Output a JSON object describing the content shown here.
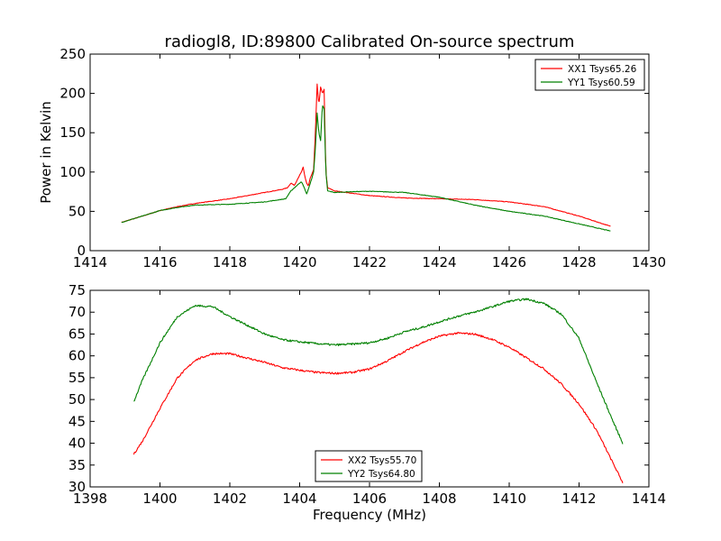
{
  "chart_data": [
    {
      "type": "line",
      "title": "radiogl8, ID:89800 Calibrated On-source spectrum",
      "xlabel": "",
      "ylabel": "Power in Kelvin",
      "xlim": [
        1414,
        1430
      ],
      "ylim": [
        0,
        250
      ],
      "xticks": [
        1414,
        1416,
        1418,
        1420,
        1422,
        1424,
        1426,
        1428,
        1430
      ],
      "yticks": [
        0,
        50,
        100,
        150,
        200,
        250
      ],
      "grid": false,
      "legend": "top-right",
      "series": [
        {
          "name": "XX1 Tsys65.26",
          "color": "#ff0000",
          "points": [
            [
              1414.9,
              36
            ],
            [
              1415.5,
              44
            ],
            [
              1416.0,
              51
            ],
            [
              1416.5,
              56
            ],
            [
              1417.0,
              60
            ],
            [
              1417.5,
              63
            ],
            [
              1418.0,
              66
            ],
            [
              1418.5,
              70
            ],
            [
              1419.0,
              74
            ],
            [
              1419.5,
              78
            ],
            [
              1419.65,
              80
            ],
            [
              1419.75,
              86
            ],
            [
              1419.85,
              83
            ],
            [
              1419.95,
              92
            ],
            [
              1420.05,
              100
            ],
            [
              1420.1,
              106
            ],
            [
              1420.15,
              94
            ],
            [
              1420.2,
              86
            ],
            [
              1420.25,
              82
            ],
            [
              1420.3,
              92
            ],
            [
              1420.35,
              97
            ],
            [
              1420.4,
              103
            ],
            [
              1420.45,
              150
            ],
            [
              1420.5,
              212
            ],
            [
              1420.55,
              185
            ],
            [
              1420.6,
              208
            ],
            [
              1420.65,
              200
            ],
            [
              1420.7,
              205
            ],
            [
              1420.75,
              100
            ],
            [
              1420.8,
              80
            ],
            [
              1421.0,
              76
            ],
            [
              1421.5,
              73
            ],
            [
              1422.0,
              70
            ],
            [
              1423.0,
              67
            ],
            [
              1424.0,
              66
            ],
            [
              1425.0,
              65
            ],
            [
              1426.0,
              62
            ],
            [
              1427.0,
              56
            ],
            [
              1428.0,
              44
            ],
            [
              1428.9,
              31
            ]
          ]
        },
        {
          "name": "YY1 Tsys60.59",
          "color": "#008000",
          "points": [
            [
              1414.9,
              36
            ],
            [
              1415.5,
              44
            ],
            [
              1416.0,
              51
            ],
            [
              1416.5,
              55
            ],
            [
              1417.0,
              58
            ],
            [
              1418.0,
              59
            ],
            [
              1419.0,
              62
            ],
            [
              1419.6,
              66
            ],
            [
              1419.75,
              76
            ],
            [
              1419.9,
              82
            ],
            [
              1420.05,
              88
            ],
            [
              1420.15,
              78
            ],
            [
              1420.2,
              72
            ],
            [
              1420.3,
              85
            ],
            [
              1420.4,
              100
            ],
            [
              1420.45,
              130
            ],
            [
              1420.5,
              175
            ],
            [
              1420.55,
              150
            ],
            [
              1420.6,
              140
            ],
            [
              1420.65,
              185
            ],
            [
              1420.7,
              180
            ],
            [
              1420.75,
              100
            ],
            [
              1420.8,
              76
            ],
            [
              1421.0,
              74
            ],
            [
              1421.5,
              75
            ],
            [
              1422.0,
              75.5
            ],
            [
              1423.0,
              74
            ],
            [
              1424.0,
              68
            ],
            [
              1425.0,
              58
            ],
            [
              1426.0,
              50
            ],
            [
              1427.0,
              44
            ],
            [
              1428.0,
              34
            ],
            [
              1428.9,
              25
            ]
          ]
        }
      ]
    },
    {
      "type": "line",
      "title": "",
      "xlabel": "Frequency (MHz)",
      "ylabel": "",
      "xlim": [
        1398,
        1414
      ],
      "ylim": [
        30,
        75
      ],
      "xticks": [
        1398,
        1400,
        1402,
        1404,
        1406,
        1408,
        1410,
        1412,
        1414
      ],
      "yticks": [
        30,
        35,
        40,
        45,
        50,
        55,
        60,
        65,
        70,
        75
      ],
      "grid": false,
      "legend": "bottom-center",
      "series": [
        {
          "name": "XX2 Tsys55.70",
          "color": "#ff0000",
          "points": [
            [
              1399.25,
              37.5
            ],
            [
              1399.5,
              40.5
            ],
            [
              1400.0,
              48
            ],
            [
              1400.5,
              55
            ],
            [
              1401.0,
              59
            ],
            [
              1401.5,
              60.5
            ],
            [
              1402.0,
              60.5
            ],
            [
              1402.5,
              59.5
            ],
            [
              1403.0,
              58.5
            ],
            [
              1403.5,
              57.3
            ],
            [
              1404.0,
              56.7
            ],
            [
              1404.5,
              56.2
            ],
            [
              1405.0,
              56
            ],
            [
              1405.5,
              56.2
            ],
            [
              1406.0,
              57
            ],
            [
              1406.5,
              58.8
            ],
            [
              1407.0,
              61
            ],
            [
              1407.5,
              63
            ],
            [
              1408.0,
              64.5
            ],
            [
              1408.5,
              65.2
            ],
            [
              1409.0,
              65
            ],
            [
              1409.5,
              63.8
            ],
            [
              1410.0,
              62
            ],
            [
              1410.5,
              59.5
            ],
            [
              1411.0,
              57
            ],
            [
              1411.5,
              53.5
            ],
            [
              1412.0,
              49
            ],
            [
              1412.5,
              43
            ],
            [
              1413.0,
              35
            ],
            [
              1413.25,
              31
            ]
          ]
        },
        {
          "name": "YY2 Tsys64.80",
          "color": "#008000",
          "points": [
            [
              1399.25,
              49.5
            ],
            [
              1399.5,
              54.5
            ],
            [
              1400.0,
              63
            ],
            [
              1400.5,
              69
            ],
            [
              1401.0,
              71.5
            ],
            [
              1401.5,
              71.3
            ],
            [
              1402.0,
              69
            ],
            [
              1402.5,
              67
            ],
            [
              1403.0,
              65
            ],
            [
              1403.5,
              63.7
            ],
            [
              1404.0,
              63.2
            ],
            [
              1404.5,
              62.8
            ],
            [
              1405.0,
              62.5
            ],
            [
              1405.5,
              62.7
            ],
            [
              1406.0,
              63
            ],
            [
              1406.5,
              64
            ],
            [
              1407.0,
              65.5
            ],
            [
              1407.5,
              66.5
            ],
            [
              1408.0,
              67.8
            ],
            [
              1408.5,
              69
            ],
            [
              1409.0,
              70
            ],
            [
              1409.5,
              71.2
            ],
            [
              1410.0,
              72.5
            ],
            [
              1410.5,
              73
            ],
            [
              1411.0,
              72
            ],
            [
              1411.5,
              69.5
            ],
            [
              1412.0,
              64
            ],
            [
              1412.5,
              54
            ],
            [
              1413.0,
              44.5
            ],
            [
              1413.25,
              40
            ]
          ]
        }
      ]
    }
  ]
}
